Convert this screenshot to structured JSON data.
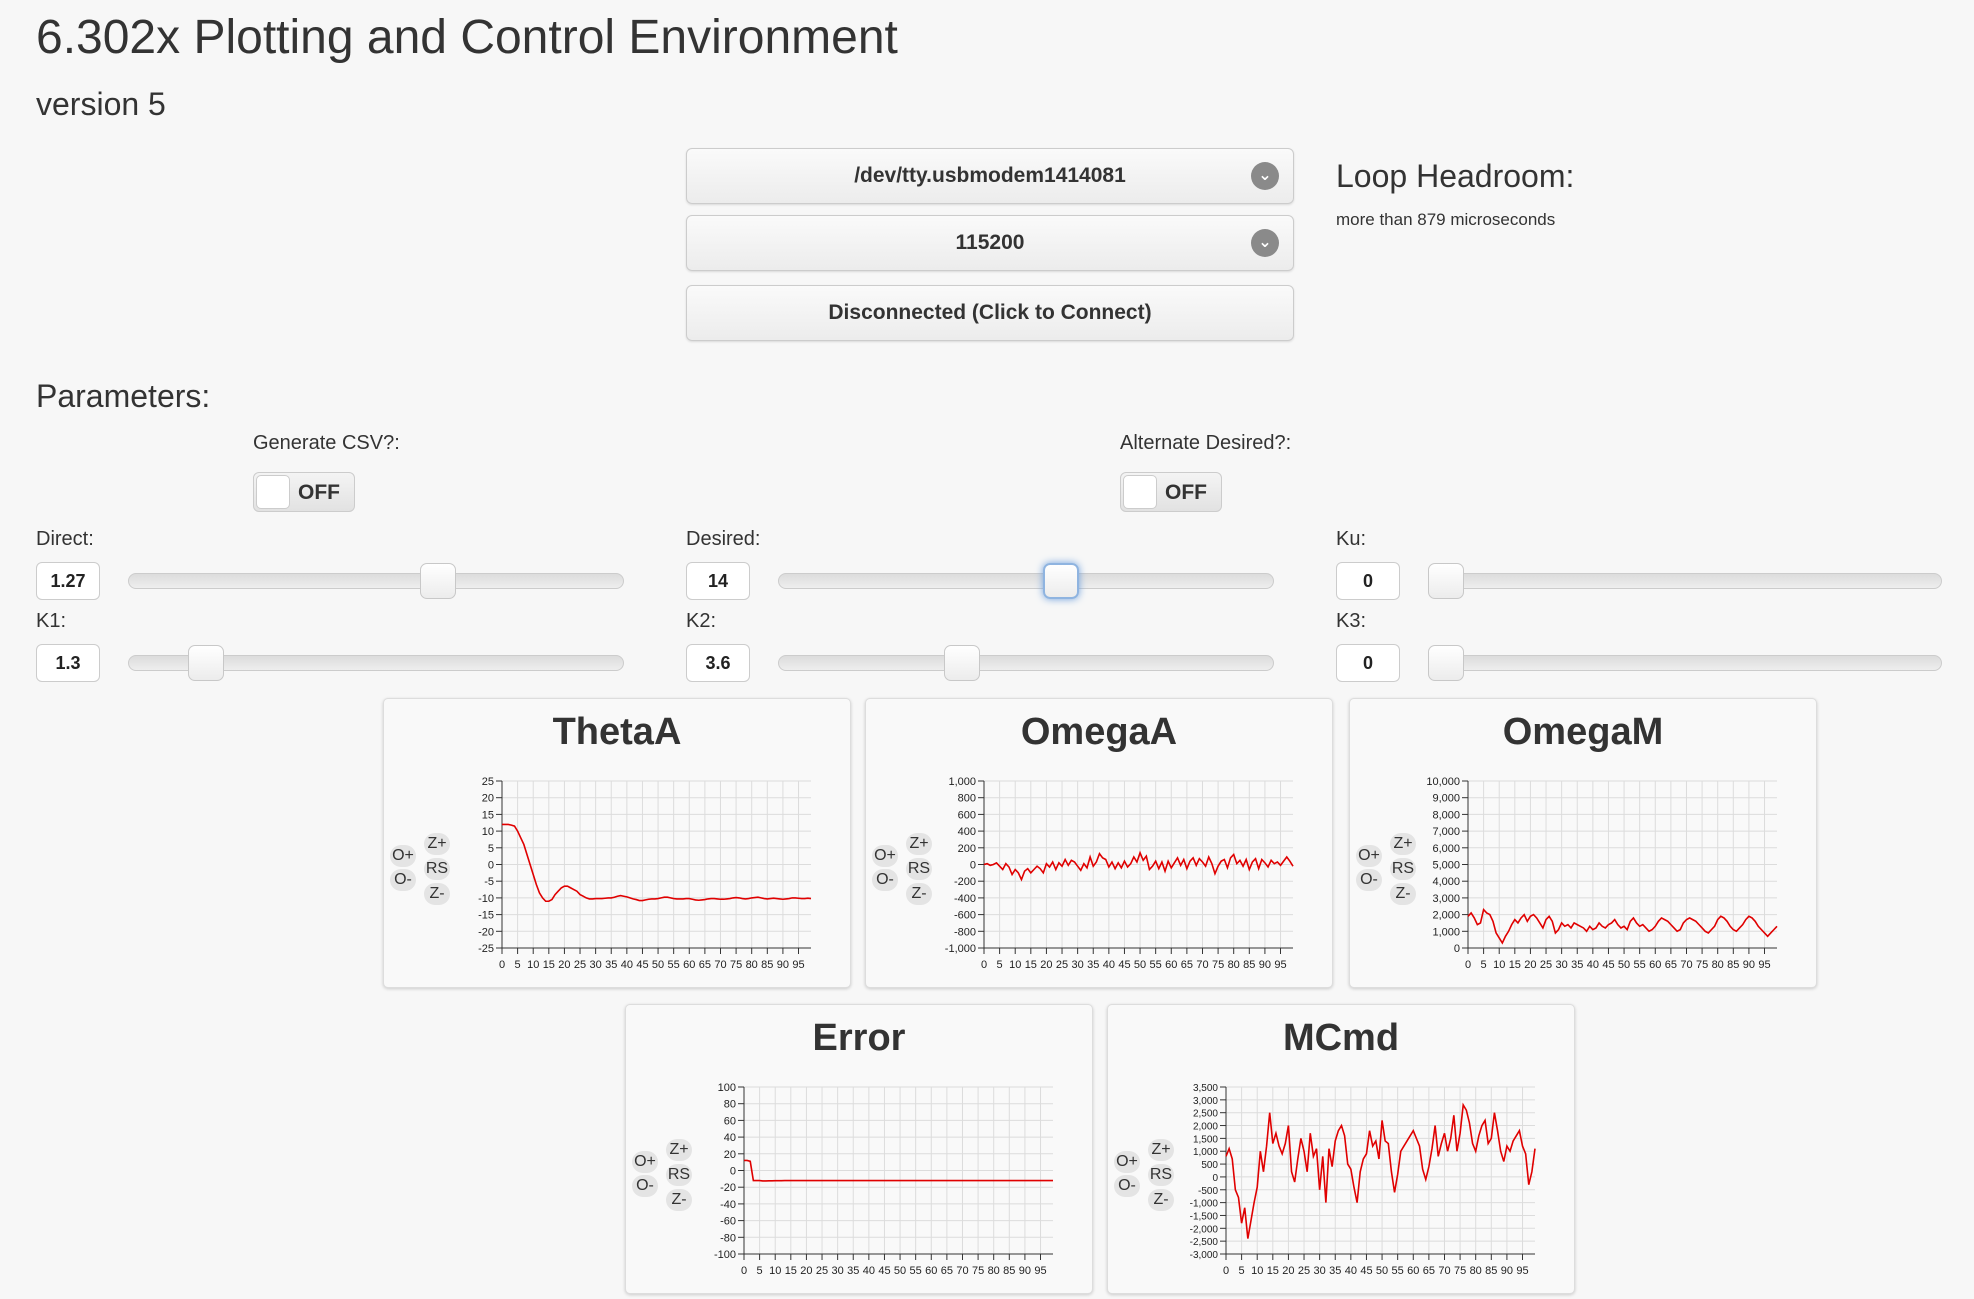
{
  "header": {
    "title": "6.302x Plotting and Control Environment",
    "version": "version 5"
  },
  "connection": {
    "port": "/dev/tty.usbmodem1414081",
    "baud": "115200",
    "connect_label": "Disconnected (Click to Connect)",
    "chevron_glyph": "⌄"
  },
  "headroom": {
    "title": "Loop Headroom:",
    "value": "more than 879 microseconds"
  },
  "params": {
    "title": "Parameters:",
    "csv_label": "Generate CSV?:",
    "csv_state": "OFF",
    "alt_label": "Alternate Desired?:",
    "alt_state": "OFF",
    "sliders": {
      "direct": {
        "label": "Direct:",
        "value": "1.27",
        "level": 0.635
      },
      "desired": {
        "label": "Desired:",
        "value": "14",
        "level": 0.575
      },
      "ku": {
        "label": "Ku:",
        "value": "0",
        "level": 0.0
      },
      "k1": {
        "label": "K1:",
        "value": "1.3",
        "level": 0.13
      },
      "k2": {
        "label": "K2:",
        "value": "3.6",
        "level": 0.36
      },
      "k3": {
        "label": "K3:",
        "value": "0",
        "level": 0.0
      }
    }
  },
  "plot_controls": {
    "o_plus": "O+",
    "o_minus": "O-",
    "z_plus": "Z+",
    "rs": "RS",
    "z_minus": "Z-"
  },
  "x_ticks": [
    "0",
    "5",
    "10",
    "15",
    "20",
    "25",
    "30",
    "35",
    "40",
    "45",
    "50",
    "55",
    "60",
    "65",
    "70",
    "75",
    "80",
    "85",
    "90",
    "95"
  ],
  "chart_data": [
    {
      "type": "line",
      "title": "ThetaA",
      "ylim": [
        -25,
        25
      ],
      "yticks": [
        "25",
        "20",
        "15",
        "10",
        "5",
        "0",
        "-5",
        "-10",
        "-15",
        "-20",
        "-25"
      ],
      "xlim": [
        0,
        99
      ],
      "values": [
        12,
        12,
        12,
        11.8,
        11.5,
        10,
        8,
        6,
        3,
        0,
        -3,
        -6,
        -8.5,
        -10,
        -11,
        -11,
        -10.5,
        -9,
        -8,
        -7,
        -6.5,
        -6.5,
        -7,
        -7.5,
        -8,
        -9,
        -9.5,
        -10,
        -10.3,
        -10.3,
        -10.2,
        -10.2,
        -10.2,
        -10.1,
        -10,
        -10,
        -9.8,
        -9.5,
        -9.3,
        -9.5,
        -9.7,
        -10,
        -10.3,
        -10.5,
        -10.8,
        -10.8,
        -10.6,
        -10.4,
        -10.3,
        -10.3,
        -10.2,
        -10,
        -9.8,
        -9.8,
        -10,
        -10.2,
        -10.3,
        -10.3,
        -10.3,
        -10.2,
        -10.2,
        -10.4,
        -10.6,
        -10.7,
        -10.6,
        -10.5,
        -10.3,
        -10.2,
        -10.2,
        -10.3,
        -10.4,
        -10.4,
        -10.3,
        -10.2,
        -10,
        -9.9,
        -10,
        -10.2,
        -10.3,
        -10.2,
        -10,
        -9.9,
        -9.8,
        -10,
        -10.2,
        -10.3,
        -10.2,
        -10.1,
        -10.2,
        -10.3,
        -10.4,
        -10.3,
        -10.2,
        -10,
        -10,
        -10.1,
        -10.2,
        -10.2,
        -10.1,
        -10.2
      ]
    },
    {
      "type": "line",
      "title": "OmegaA",
      "ylim": [
        -1000,
        1000
      ],
      "yticks": [
        "1,000",
        "800",
        "600",
        "400",
        "200",
        "0",
        "-200",
        "-400",
        "-600",
        "-800",
        "-1,000"
      ],
      "xlim": [
        0,
        99
      ],
      "values": [
        0,
        10,
        -10,
        0,
        20,
        -20,
        -60,
        10,
        -30,
        -120,
        -60,
        -100,
        -180,
        -80,
        -50,
        -100,
        -60,
        -20,
        -50,
        -100,
        10,
        -30,
        30,
        -60,
        20,
        -20,
        60,
        -10,
        50,
        30,
        -20,
        -70,
        10,
        -40,
        90,
        -20,
        30,
        130,
        80,
        60,
        -30,
        30,
        -50,
        20,
        -40,
        40,
        -30,
        10,
        90,
        30,
        140,
        50,
        100,
        -60,
        -20,
        40,
        -50,
        30,
        -80,
        40,
        -40,
        20,
        80,
        -10,
        60,
        -50,
        40,
        80,
        -10,
        70,
        30,
        -20,
        90,
        10,
        -110,
        -20,
        40,
        60,
        -40,
        80,
        120,
        10,
        50,
        -20,
        60,
        -60,
        30,
        70,
        -50,
        60,
        20,
        -30,
        50,
        10,
        30,
        -10,
        40,
        90,
        40,
        -20
      ]
    },
    {
      "type": "line",
      "title": "OmegaM",
      "ylim": [
        0,
        10000
      ],
      "yticks": [
        "10,000",
        "9,000",
        "8,000",
        "7,000",
        "6,000",
        "5,000",
        "4,000",
        "3,000",
        "2,000",
        "1,000",
        "0"
      ],
      "xlim": [
        0,
        99
      ],
      "values": [
        1900,
        2100,
        1800,
        1400,
        1500,
        2300,
        2100,
        2000,
        1600,
        900,
        600,
        300,
        700,
        1000,
        1400,
        1700,
        1500,
        1800,
        2000,
        1600,
        1900,
        2000,
        1800,
        1500,
        1200,
        1700,
        1900,
        1600,
        900,
        1100,
        1500,
        1300,
        1400,
        1200,
        1500,
        1400,
        1300,
        1200,
        1000,
        1300,
        1100,
        1200,
        1500,
        1300,
        1200,
        1400,
        1500,
        1700,
        1400,
        1200,
        1300,
        1100,
        1600,
        1800,
        1500,
        1300,
        1400,
        1200,
        1000,
        1100,
        1300,
        1600,
        1800,
        1700,
        1600,
        1400,
        1200,
        1000,
        1100,
        1500,
        1700,
        1800,
        1700,
        1600,
        1400,
        1200,
        1000,
        900,
        1100,
        1300,
        1700,
        1900,
        1800,
        1600,
        1300,
        1100,
        1000,
        1200,
        1400,
        1700,
        1900,
        1800,
        1600,
        1300,
        1100,
        900,
        700,
        900,
        1100,
        1300
      ]
    },
    {
      "type": "line",
      "title": "Error",
      "ylim": [
        -100,
        100
      ],
      "yticks": [
        "100",
        "80",
        "60",
        "40",
        "20",
        "0",
        "-20",
        "-40",
        "-60",
        "-80",
        "-100"
      ],
      "xlim": [
        0,
        99
      ],
      "values": [
        12,
        12,
        11,
        -12,
        -12,
        -12,
        -12.5,
        -12.5,
        -12.3,
        -12.3,
        -12.2,
        -12.2,
        -12.2,
        -12.1,
        -12.1,
        -12.1,
        -12.1,
        -12.1,
        -12.1,
        -12.1,
        -12.1,
        -12.1,
        -12.1,
        -12.1,
        -12.1,
        -12.1,
        -12.1,
        -12.1,
        -12.1,
        -12.1,
        -12.1,
        -12.1,
        -12.1,
        -12.1,
        -12.1,
        -12.1,
        -12.1,
        -12.1,
        -12.1,
        -12.1,
        -12.1,
        -12.1,
        -12.1,
        -12.1,
        -12.1,
        -12.1,
        -12.1,
        -12.1,
        -12.1,
        -12.1,
        -12.1,
        -12.1,
        -12.1,
        -12.1,
        -12.1,
        -12.1,
        -12.1,
        -12.1,
        -12.1,
        -12.1,
        -12.1,
        -12.1,
        -12.1,
        -12.1,
        -12.1,
        -12.1,
        -12.1,
        -12.1,
        -12.1,
        -12.1,
        -12.1,
        -12.1,
        -12.1,
        -12.1,
        -12.1,
        -12.1,
        -12.1,
        -12.1,
        -12.1,
        -12.1,
        -12.1,
        -12.1,
        -12.1,
        -12.1,
        -12.1,
        -12.1,
        -12.1,
        -12.1,
        -12.1,
        -12.1,
        -12.1,
        -12.1,
        -12.1,
        -12.1,
        -12.1,
        -12.1,
        -12.1,
        -12.1,
        -12.1,
        -12.1
      ]
    },
    {
      "type": "line",
      "title": "MCmd",
      "ylim": [
        -3000,
        3500
      ],
      "yticks": [
        "3,500",
        "3,000",
        "2,500",
        "2,000",
        "1,500",
        "1,000",
        "500",
        "0",
        "-500",
        "-1,000",
        "-1,500",
        "-2,000",
        "-2,500",
        "-3,000"
      ],
      "xlim": [
        0,
        99
      ],
      "values": [
        800,
        1100,
        700,
        -500,
        -800,
        -1800,
        -1200,
        -2400,
        -1700,
        -1000,
        -400,
        1000,
        200,
        1200,
        2500,
        1300,
        1700,
        1200,
        900,
        1300,
        2000,
        200,
        -200,
        700,
        1500,
        1000,
        200,
        1700,
        800,
        1100,
        -500,
        800,
        -1000,
        1100,
        400,
        1400,
        1800,
        2000,
        1600,
        500,
        300,
        -400,
        -1000,
        200,
        700,
        900,
        1800,
        1200,
        1400,
        700,
        2200,
        1400,
        1300,
        200,
        -600,
        100,
        1000,
        1200,
        1400,
        1600,
        1800,
        1500,
        1200,
        300,
        -100,
        400,
        1100,
        2000,
        800,
        1300,
        1700,
        1000,
        1500,
        2400,
        1000,
        1700,
        2800,
        2600,
        2100,
        1300,
        1000,
        1600,
        2000,
        2200,
        1300,
        1500,
        2500,
        1800,
        1000,
        600,
        1200,
        1000,
        1400,
        1600,
        1800,
        1200,
        900,
        -300,
        200,
        1100
      ]
    }
  ]
}
